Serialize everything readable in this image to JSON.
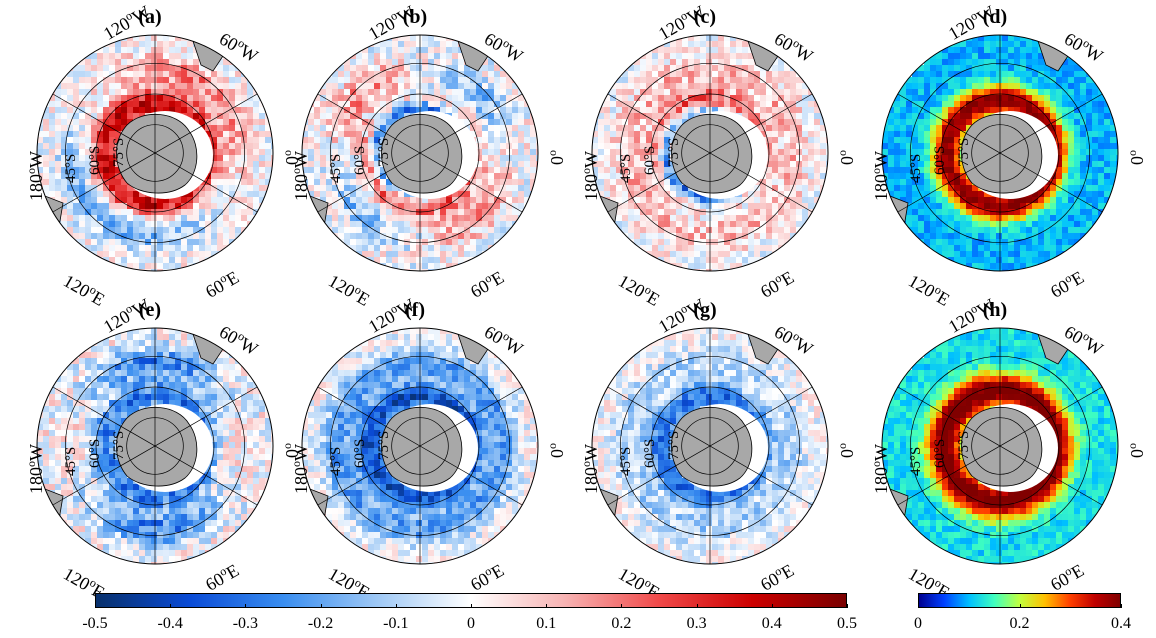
{
  "panels": [
    {
      "label": "(a)",
      "cmap": "div",
      "pattern": 0
    },
    {
      "label": "(b)",
      "cmap": "div",
      "pattern": 1
    },
    {
      "label": "(c)",
      "cmap": "div",
      "pattern": 2
    },
    {
      "label": "(d)",
      "cmap": "jet",
      "pattern": 3
    },
    {
      "label": "(e)",
      "cmap": "div",
      "pattern": 4
    },
    {
      "label": "(f)",
      "cmap": "div",
      "pattern": 5
    },
    {
      "label": "(g)",
      "cmap": "div",
      "pattern": 6
    },
    {
      "label": "(h)",
      "cmap": "jet",
      "pattern": 7
    }
  ],
  "lon_labels": {
    "w120": "120",
    "w60": "60",
    "w180": "180",
    "e0": "0",
    "e120": "120",
    "e60": "60",
    "deg": "o",
    "W": "W",
    "E": "E"
  },
  "lat_labels": [
    "45°S",
    "60°S",
    "75°S"
  ],
  "colorbars": {
    "diverging": {
      "ticks": [
        "-0.5",
        "-0.4",
        "-0.3",
        "-0.2",
        "-0.1",
        "0",
        "0.1",
        "0.2",
        "0.3",
        "0.4",
        "0.5"
      ],
      "min": -0.5,
      "max": 0.5,
      "colors": [
        "#08306b",
        "#0a4bd6",
        "#3a8ef0",
        "#9ec8f5",
        "#ffffff",
        "#f7b3b3",
        "#f04a4a",
        "#cc0000",
        "#7a0000"
      ]
    },
    "sequential": {
      "ticks": [
        "0",
        "0.2",
        "0.4"
      ],
      "min": 0,
      "max": 0.4,
      "colors": [
        "#00008f",
        "#0040ff",
        "#00c0ff",
        "#40ffbf",
        "#c0ff40",
        "#ffc000",
        "#ff4000",
        "#bf0000",
        "#800000"
      ]
    }
  },
  "colors": {
    "land": "#a8a8a8",
    "coast": "#000000",
    "grid": "#000000"
  }
}
